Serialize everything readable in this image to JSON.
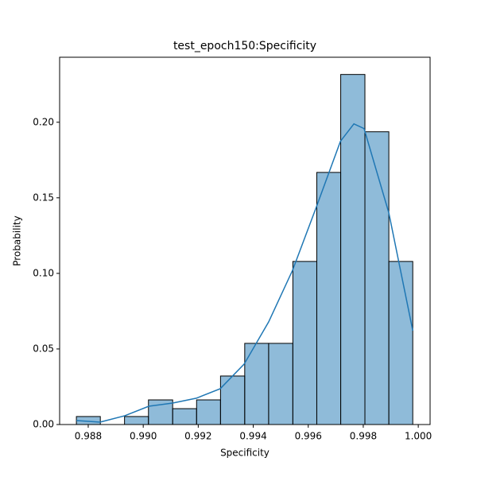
{
  "chart_data": {
    "type": "histogram",
    "title": "test_epoch150:Specificity",
    "x_label": "Specificity",
    "y_label": "Probability",
    "bins": [
      0.98757,
      0.98844,
      0.98932,
      0.99019,
      0.99107,
      0.99194,
      0.99281,
      0.99369,
      0.99456,
      0.99544,
      0.99631,
      0.99718,
      0.99806,
      0.99893,
      0.9998
    ],
    "values": [
      0.0053,
      0,
      0.0053,
      0.0163,
      0.0105,
      0.0163,
      0.0321,
      0.0537,
      0.0537,
      0.1079,
      0.1668,
      0.2316,
      0.1937,
      0.1079
    ],
    "color": "#1f77b4",
    "kde": {
      "x": [
        0.98757,
        0.98843,
        0.98933,
        0.9902,
        0.99107,
        0.99193,
        0.9928,
        0.99367,
        0.99456,
        0.99543,
        0.9963,
        0.99717,
        0.99766,
        0.99803,
        0.99893,
        0.9998
      ],
      "values": [
        0.0026,
        0.0016,
        0.0058,
        0.0121,
        0.0142,
        0.0174,
        0.0237,
        0.04,
        0.0679,
        0.1021,
        0.1442,
        0.1874,
        0.1989,
        0.1958,
        0.14,
        0.0621
      ],
      "color": "#1f77b4"
    },
    "xlim": [
      0.98696,
      1.00043
    ],
    "ylim": [
      0,
      0.243
    ],
    "xticks": [
      0.988,
      {
        "value": 0.99,
        "label": "0.990"
      },
      0.992,
      0.994,
      0.996,
      0.998,
      {
        "value": 1,
        "label": "1.000"
      }
    ],
    "yticks": [
      {
        "value": 0,
        "label": "0.00"
      },
      0.05,
      {
        "value": 0.1,
        "label": "0.10"
      },
      0.15,
      {
        "value": 0.2,
        "label": "0.20"
      }
    ]
  }
}
